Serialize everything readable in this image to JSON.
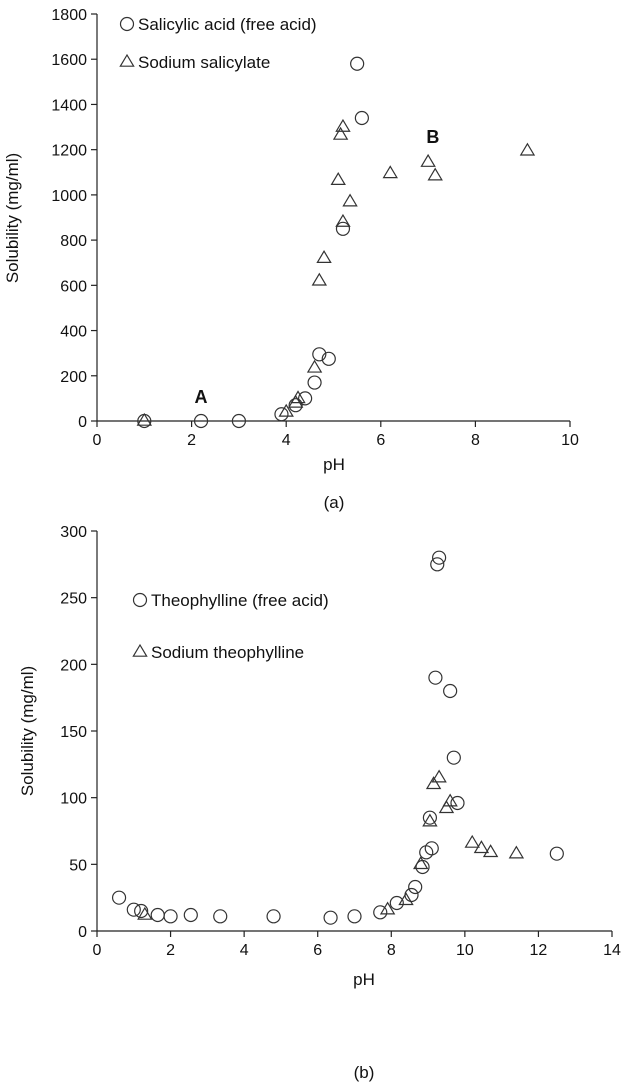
{
  "chart_data": [
    {
      "type": "scatter",
      "panel_label": "(a)",
      "xlabel": "pH",
      "ylabel": "Solubility (mg/ml)",
      "xlim": [
        0,
        10
      ],
      "ylim": [
        0,
        1800
      ],
      "xticks": [
        0,
        2,
        4,
        6,
        8,
        10
      ],
      "yticks": [
        0,
        200,
        400,
        600,
        800,
        1000,
        1200,
        1400,
        1600,
        1800
      ],
      "grid": false,
      "legend_position": "top-left",
      "series": [
        {
          "name": "Salicylic acid (free acid)",
          "marker": "circle",
          "points": [
            [
              1.0,
              0
            ],
            [
              2.2,
              0
            ],
            [
              3.0,
              0
            ],
            [
              3.9,
              30
            ],
            [
              4.2,
              70
            ],
            [
              4.4,
              100
            ],
            [
              4.6,
              170
            ],
            [
              4.7,
              295
            ],
            [
              4.9,
              275
            ],
            [
              5.2,
              850
            ],
            [
              5.5,
              1580
            ],
            [
              5.6,
              1340
            ]
          ]
        },
        {
          "name": "Sodium salicylate",
          "marker": "triangle",
          "points": [
            [
              1.0,
              0
            ],
            [
              4.0,
              40
            ],
            [
              4.2,
              80
            ],
            [
              4.25,
              100
            ],
            [
              4.6,
              235
            ],
            [
              4.7,
              620
            ],
            [
              4.8,
              720
            ],
            [
              5.1,
              1065
            ],
            [
              5.15,
              1265
            ],
            [
              5.2,
              1300
            ],
            [
              5.2,
              880
            ],
            [
              5.35,
              970
            ],
            [
              6.2,
              1095
            ],
            [
              7.0,
              1145
            ],
            [
              7.15,
              1085
            ],
            [
              9.1,
              1195
            ]
          ]
        }
      ],
      "annotations": [
        {
          "text": "A",
          "x": 2.2,
          "y": 80
        },
        {
          "text": "B",
          "x": 7.1,
          "y": 1230
        }
      ]
    },
    {
      "type": "scatter",
      "panel_label": "(b)",
      "xlabel": "pH",
      "ylabel": "Solubility (mg/ml)",
      "xlim": [
        0,
        14
      ],
      "ylim": [
        0,
        300
      ],
      "xticks": [
        0,
        2,
        4,
        6,
        8,
        10,
        12,
        14
      ],
      "yticks": [
        0,
        50,
        100,
        150,
        200,
        250,
        300
      ],
      "grid": false,
      "legend_position": "top-left",
      "series": [
        {
          "name": "Theophylline (free acid)",
          "marker": "circle",
          "points": [
            [
              0.6,
              25
            ],
            [
              1.0,
              16
            ],
            [
              1.2,
              15
            ],
            [
              1.65,
              12
            ],
            [
              2.0,
              11
            ],
            [
              2.55,
              12
            ],
            [
              3.35,
              11
            ],
            [
              4.8,
              11
            ],
            [
              6.35,
              10
            ],
            [
              7.0,
              11
            ],
            [
              7.7,
              14
            ],
            [
              8.15,
              21
            ],
            [
              8.55,
              27
            ],
            [
              8.65,
              33
            ],
            [
              8.85,
              48
            ],
            [
              8.95,
              59
            ],
            [
              9.05,
              85
            ],
            [
              9.1,
              62
            ],
            [
              9.2,
              190
            ],
            [
              9.25,
              275
            ],
            [
              9.3,
              280
            ],
            [
              9.6,
              180
            ],
            [
              9.7,
              130
            ],
            [
              9.8,
              96
            ],
            [
              12.5,
              58
            ]
          ]
        },
        {
          "name": "Sodium theophylline",
          "marker": "triangle",
          "points": [
            [
              1.3,
              12
            ],
            [
              7.9,
              16
            ],
            [
              8.4,
              23
            ],
            [
              8.8,
              50
            ],
            [
              9.05,
              82
            ],
            [
              9.15,
              110
            ],
            [
              9.3,
              115
            ],
            [
              9.5,
              92
            ],
            [
              9.6,
              97
            ],
            [
              10.2,
              66
            ],
            [
              10.45,
              62
            ],
            [
              10.7,
              59
            ],
            [
              11.4,
              58
            ]
          ]
        }
      ]
    }
  ]
}
